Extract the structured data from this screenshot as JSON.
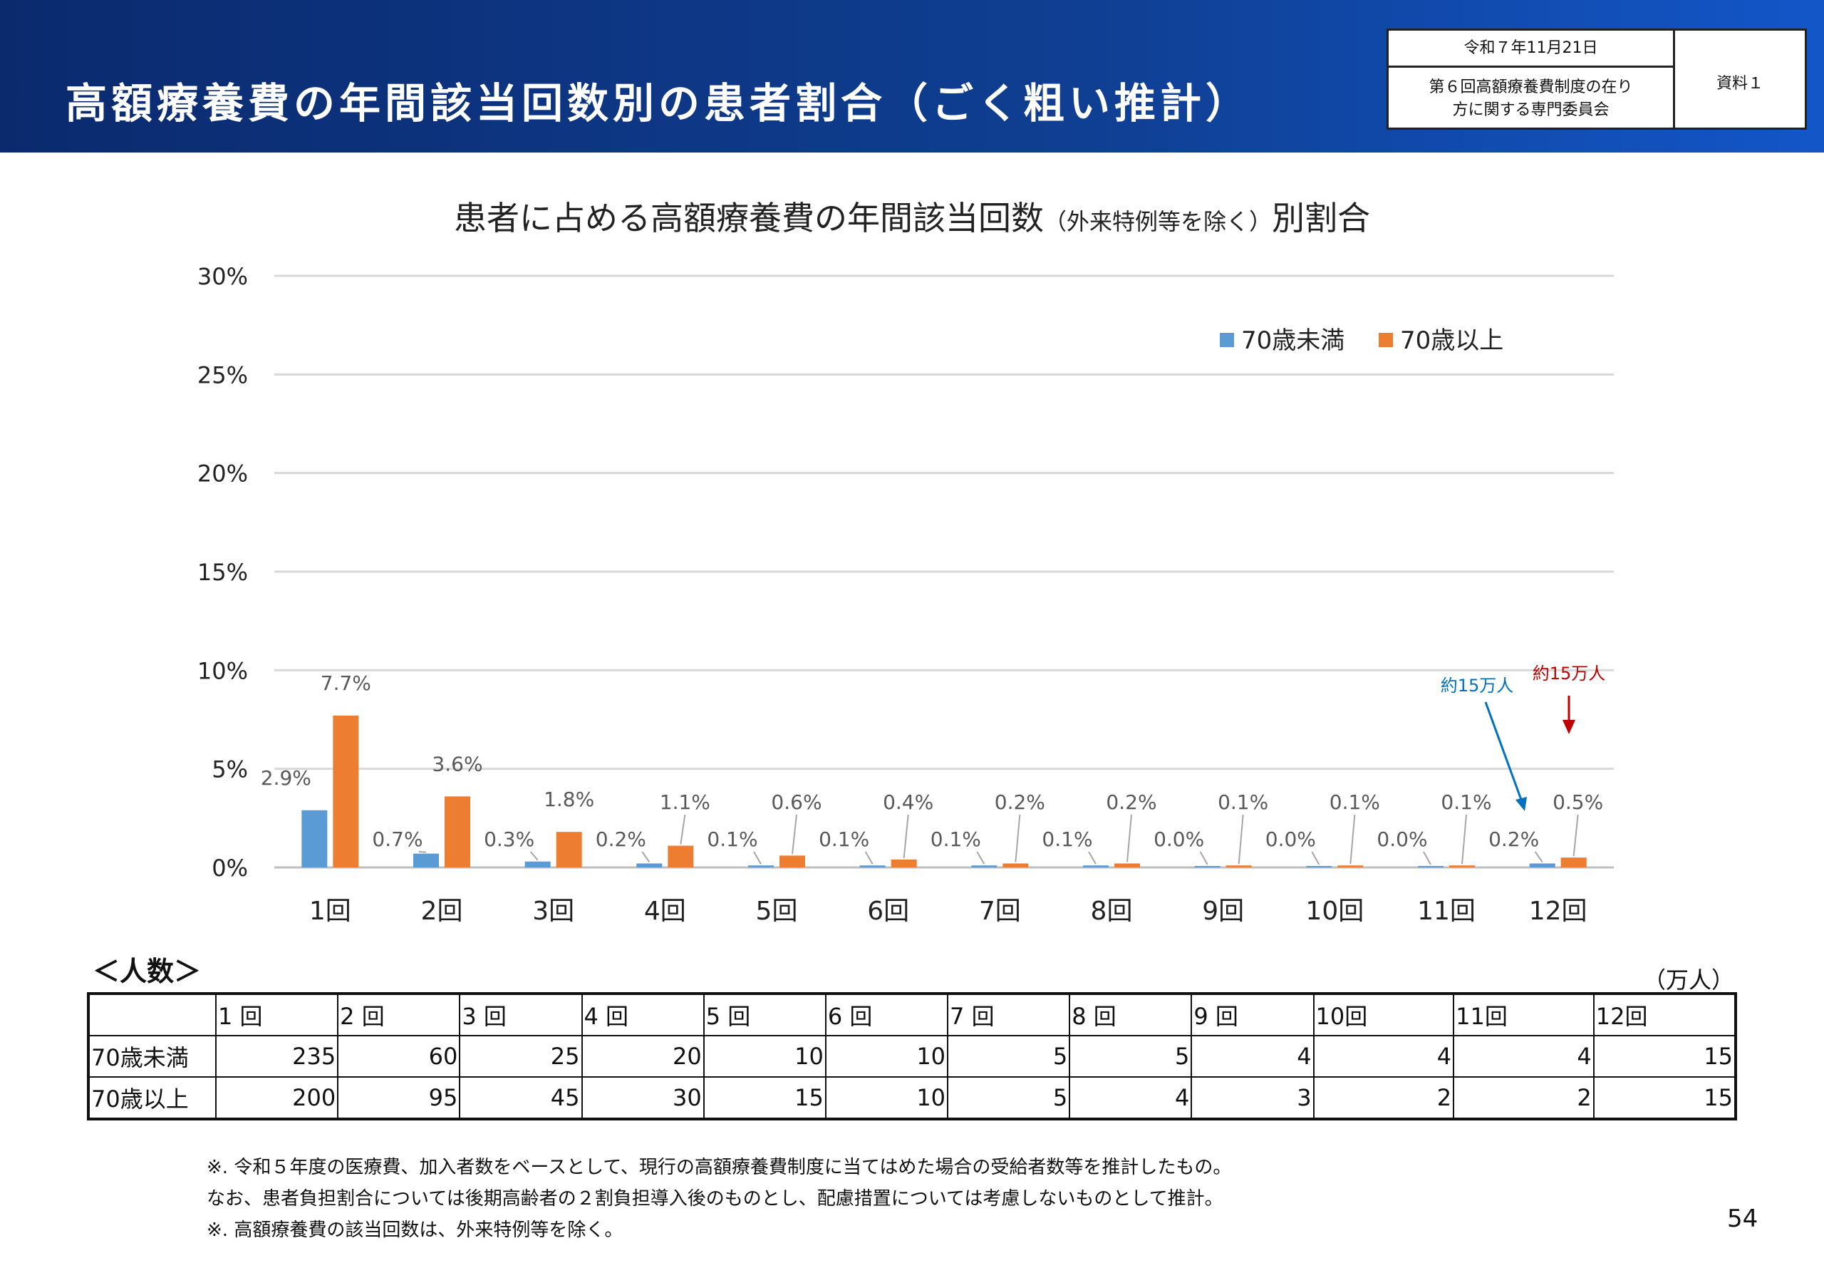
{
  "header": {
    "title": "高額療養費の年間該当回数別の患者割合（ごく粗い推計）",
    "date": "令和７年11月21日",
    "committee_line1": "第６回高額療養費制度の在り",
    "committee_line2": "方に関する専門委員会",
    "doc_label": "資料１"
  },
  "chart_title_main": "患者に占める高額療養費の年間該当回数",
  "chart_title_note": "（外来特例等を除く）",
  "chart_title_tail": "別割合",
  "chart_data": {
    "type": "bar",
    "title": "患者に占める高額療養費の年間該当回数（外来特例等を除く）別割合",
    "categories": [
      "1回",
      "2回",
      "3回",
      "4回",
      "5回",
      "6回",
      "7回",
      "8回",
      "9回",
      "10回",
      "11回",
      "12回"
    ],
    "series": [
      {
        "name": "70歳未満",
        "color": "#5b9bd5",
        "values": [
          2.9,
          0.7,
          0.3,
          0.2,
          0.1,
          0.1,
          0.1,
          0.1,
          0.0,
          0.0,
          0.0,
          0.2
        ],
        "labels": [
          "2.9%",
          "0.7%",
          "0.3%",
          "0.2%",
          "0.1%",
          "0.1%",
          "0.1%",
          "0.1%",
          "0.0%",
          "0.0%",
          "0.0%",
          "0.2%"
        ]
      },
      {
        "name": "70歳以上",
        "color": "#ed7d31",
        "values": [
          7.7,
          3.6,
          1.8,
          1.1,
          0.6,
          0.4,
          0.2,
          0.2,
          0.1,
          0.1,
          0.1,
          0.5
        ],
        "labels": [
          "7.7%",
          "3.6%",
          "1.8%",
          "1.1%",
          "0.6%",
          "0.4%",
          "0.2%",
          "0.2%",
          "0.1%",
          "0.1%",
          "0.1%",
          "0.5%"
        ]
      }
    ],
    "y_ticks": [
      "0%",
      "5%",
      "10%",
      "15%",
      "20%",
      "25%",
      "30%"
    ],
    "ylim": [
      0,
      30
    ],
    "grid": true,
    "legend": "top-right",
    "annotations": [
      {
        "text": "約15万人",
        "color": "#0070c0",
        "target": "12回 70歳未満"
      },
      {
        "text": "約15万人",
        "color": "#c00000",
        "target": "12回 70歳以上"
      }
    ]
  },
  "people": {
    "label": "＜人数＞",
    "unit": "（万人）",
    "headers": [
      "1 回",
      "2 回",
      "3 回",
      "4 回",
      "5 回",
      "6 回",
      "7 回",
      "8 回",
      "9 回",
      "10回",
      "11回",
      "12回"
    ],
    "rows": [
      {
        "label": "70歳未満",
        "values": [
          "235",
          "60",
          "25",
          "20",
          "10",
          "10",
          "5",
          "5",
          "4",
          "4",
          "4",
          "15"
        ]
      },
      {
        "label": "70歳以上",
        "values": [
          "200",
          "95",
          "45",
          "30",
          "15",
          "10",
          "5",
          "4",
          "3",
          "2",
          "2",
          "15"
        ]
      }
    ]
  },
  "notes": [
    "※.  令和５年度の医療費、加入者数をベースとして、現行の高額療養費制度に当てはめた場合の受給者数等を推計したもの。",
    "       なお、患者負担割合については後期高齢者の２割負担導入後のものとし、配慮措置については考慮しないものとして推計。",
    "※.  高額療養費の該当回数は、外来特例等を除く。"
  ],
  "page_number": "54"
}
